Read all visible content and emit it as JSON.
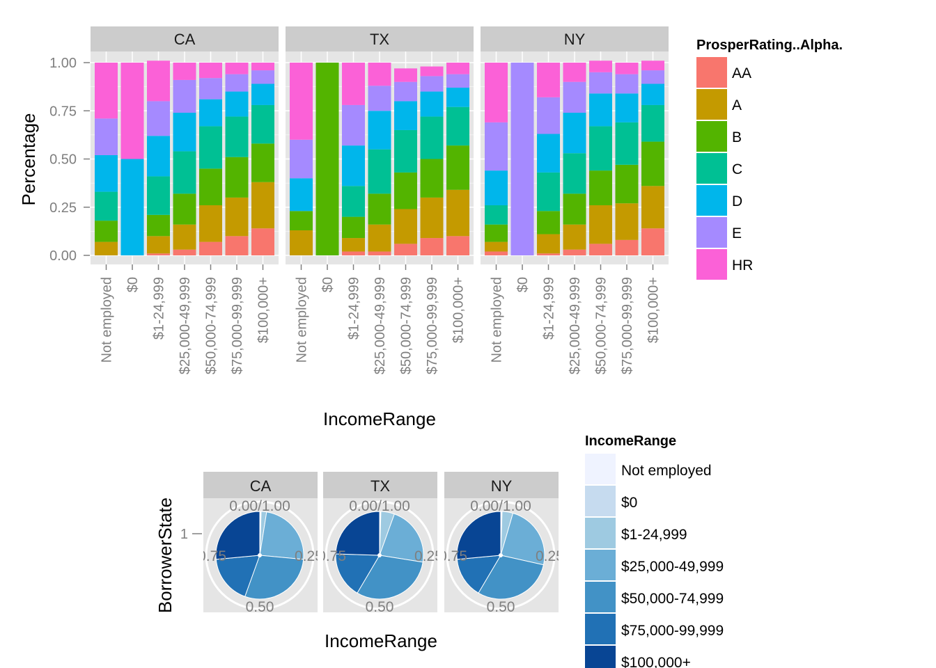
{
  "chart_data": [
    {
      "type": "bar",
      "stacked": true,
      "facets": [
        "CA",
        "TX",
        "NY"
      ],
      "categories": [
        "Not employed",
        "$0",
        "$1-24,999",
        "$25,000-49,999",
        "$50,000-74,999",
        "$75,000-99,999",
        "$100,000+"
      ],
      "xlabel": "IncomeRange",
      "ylabel": "Percentage",
      "ylim": [
        0,
        1
      ],
      "yticks": [
        "0.00",
        "0.25",
        "0.50",
        "0.75",
        "1.00"
      ],
      "grid": true,
      "legend": {
        "title": "ProsperRating..Alpha.",
        "placement": "right",
        "entries": [
          "AA",
          "A",
          "B",
          "C",
          "D",
          "E",
          "HR"
        ],
        "colors": [
          "#F8766D",
          "#C49A00",
          "#53B400",
          "#00C094",
          "#00B6EB",
          "#A58AFF",
          "#FB61D7"
        ]
      },
      "series": [
        {
          "name": "AA",
          "values": {
            "CA": [
              0.0,
              0.0,
              0.01,
              0.03,
              0.07,
              0.1,
              0.14
            ],
            "TX": [
              0.0,
              0.0,
              0.02,
              0.02,
              0.06,
              0.09,
              0.1
            ],
            "NY": [
              0.02,
              0.0,
              0.01,
              0.03,
              0.06,
              0.08,
              0.14
            ]
          }
        },
        {
          "name": "A",
          "values": {
            "CA": [
              0.07,
              0.0,
              0.09,
              0.13,
              0.19,
              0.2,
              0.24
            ],
            "TX": [
              0.13,
              0.0,
              0.07,
              0.14,
              0.18,
              0.21,
              0.24
            ],
            "NY": [
              0.05,
              0.0,
              0.1,
              0.13,
              0.2,
              0.19,
              0.22
            ]
          }
        },
        {
          "name": "B",
          "values": {
            "CA": [
              0.11,
              0.0,
              0.11,
              0.16,
              0.19,
              0.21,
              0.2
            ],
            "TX": [
              0.1,
              1.0,
              0.11,
              0.16,
              0.19,
              0.2,
              0.23
            ],
            "NY": [
              0.09,
              0.0,
              0.12,
              0.16,
              0.18,
              0.2,
              0.23
            ]
          }
        },
        {
          "name": "C",
          "values": {
            "CA": [
              0.15,
              0.0,
              0.2,
              0.22,
              0.22,
              0.21,
              0.2
            ],
            "TX": [
              0.0,
              0.0,
              0.16,
              0.23,
              0.22,
              0.22,
              0.2
            ],
            "NY": [
              0.1,
              0.0,
              0.2,
              0.21,
              0.23,
              0.22,
              0.19
            ]
          }
        },
        {
          "name": "D",
          "values": {
            "CA": [
              0.19,
              0.5,
              0.21,
              0.2,
              0.14,
              0.13,
              0.11
            ],
            "TX": [
              0.17,
              0.0,
              0.21,
              0.2,
              0.15,
              0.13,
              0.1
            ],
            "NY": [
              0.18,
              0.0,
              0.2,
              0.21,
              0.17,
              0.15,
              0.11
            ]
          }
        },
        {
          "name": "E",
          "values": {
            "CA": [
              0.19,
              0.0,
              0.18,
              0.17,
              0.11,
              0.09,
              0.07
            ],
            "TX": [
              0.2,
              0.0,
              0.21,
              0.13,
              0.1,
              0.08,
              0.07
            ],
            "NY": [
              0.25,
              1.0,
              0.19,
              0.16,
              0.11,
              0.1,
              0.07
            ]
          }
        },
        {
          "name": "HR",
          "values": {
            "CA": [
              0.29,
              0.5,
              0.21,
              0.09,
              0.08,
              0.06,
              0.04
            ],
            "TX": [
              0.4,
              0.0,
              0.22,
              0.12,
              0.07,
              0.05,
              0.06
            ],
            "NY": [
              0.31,
              0.0,
              0.18,
              0.1,
              0.06,
              0.06,
              0.05
            ]
          }
        }
      ]
    },
    {
      "type": "pie",
      "facets": [
        "CA",
        "TX",
        "NY"
      ],
      "xlabel": "IncomeRange",
      "ylabel": "BorrowerState",
      "ytick": "1",
      "angle_labels": [
        "0.00/1.00",
        "0.25",
        "0.50",
        "0.75"
      ],
      "legend": {
        "title": "IncomeRange",
        "placement": "right",
        "entries": [
          "Not employed",
          "$0",
          "$1-24,999",
          "$25,000-49,999",
          "$50,000-74,999",
          "$75,000-99,999",
          "$100,000+"
        ],
        "colors": [
          "#EFF3FF",
          "#C6DBEF",
          "#9ECAE1",
          "#6BAED6",
          "#4292C6",
          "#2171B5",
          "#084594"
        ]
      },
      "values": {
        "CA": [
          0.005,
          0.0,
          0.02,
          0.24,
          0.29,
          0.18,
          0.265
        ],
        "TX": [
          0.005,
          0.0,
          0.05,
          0.22,
          0.31,
          0.17,
          0.245
        ],
        "NY": [
          0.005,
          0.0,
          0.04,
          0.24,
          0.3,
          0.15,
          0.265
        ]
      }
    }
  ]
}
